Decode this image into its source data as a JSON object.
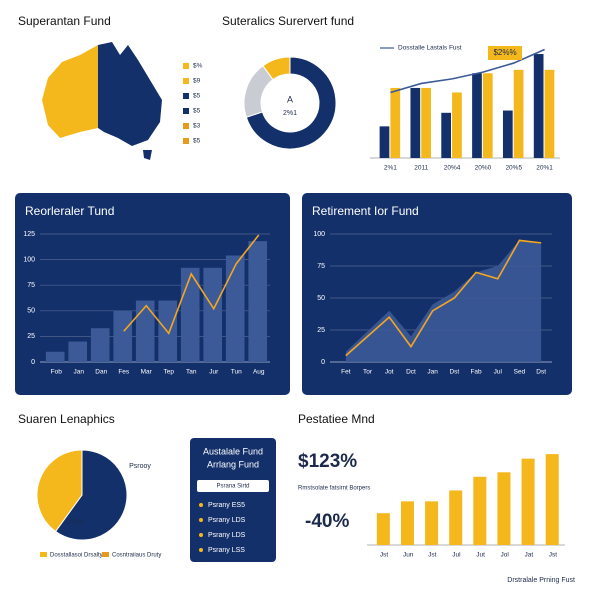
{
  "chart_data": [
    {
      "type": "map",
      "title": "Superantan Fund",
      "legend": [
        {
          "label": "$%",
          "color": "#f5b81c"
        },
        {
          "label": "$9",
          "color": "#f5b81c"
        },
        {
          "label": "$5",
          "color": "#14306b"
        },
        {
          "label": "$5",
          "color": "#14306b"
        },
        {
          "label": "$3",
          "color": "#e89a1c"
        },
        {
          "label": "$5",
          "color": "#e89a1c"
        }
      ]
    },
    {
      "type": "donut",
      "title": "Suteralics Surervert fund",
      "values": [
        70,
        20,
        10
      ],
      "colors": [
        "#14306b",
        "#c9ccd2",
        "#f5b81c"
      ],
      "annotations": [
        "A",
        "2%1"
      ]
    },
    {
      "type": "bar",
      "legend_text": "Dosstalle Lastals Fust",
      "annotations": [
        "$2%%"
      ],
      "categories": [
        "2%1",
        "2011",
        "20%4",
        "20%0",
        "20%5",
        "20%1"
      ],
      "ylim": [
        0,
        100
      ],
      "series": [
        {
          "kind": "bar",
          "color": "#14306b",
          "values": [
            28,
            62,
            40,
            75,
            42,
            92
          ]
        },
        {
          "kind": "bar",
          "color": "#f5b81c",
          "values": [
            62,
            62,
            58,
            75,
            78,
            78
          ]
        },
        {
          "kind": "line",
          "color": "#3c5a98",
          "values": [
            58,
            66,
            70,
            76,
            84,
            96
          ]
        }
      ]
    },
    {
      "type": "bar",
      "title": "Reorleraler Tund",
      "categories": [
        "Fob",
        "Jan",
        "Dan",
        "Fes",
        "Mar",
        "Tep",
        "Tan",
        "Jur",
        "Tun",
        "Aug"
      ],
      "ylim": [
        0,
        125
      ],
      "yticks": [
        0,
        25,
        50,
        75,
        100,
        125
      ],
      "grid": true,
      "series": [
        {
          "kind": "bar",
          "color": "#3c5a98",
          "values": [
            10,
            20,
            33,
            50,
            60,
            60,
            92,
            92,
            104,
            118
          ]
        },
        {
          "kind": "line",
          "color": "#f2a623",
          "values": [
            null,
            null,
            null,
            30,
            55,
            28,
            86,
            52,
            96,
            124
          ]
        }
      ]
    },
    {
      "type": "area",
      "title": "Retirement Ior Fund",
      "categories": [
        "Fet",
        "Tor",
        "Jot",
        "Dct",
        "Jan",
        "Dst",
        "Fab",
        "Jul",
        "Sed",
        "Dst"
      ],
      "ylim": [
        0,
        100
      ],
      "yticks": [
        0,
        25,
        50,
        75,
        100
      ],
      "grid": true,
      "series": [
        {
          "kind": "area",
          "color": "#3c5a98",
          "values": [
            8,
            24,
            40,
            20,
            45,
            55,
            70,
            75,
            95,
            92
          ]
        },
        {
          "kind": "line",
          "color": "#f2a623",
          "values": [
            5,
            20,
            35,
            12,
            40,
            50,
            70,
            65,
            95,
            93
          ]
        }
      ]
    },
    {
      "type": "pie",
      "title": "Suaren Lenaphics",
      "values": [
        60,
        40
      ],
      "colors": [
        "#14306b",
        "#f5b81c"
      ],
      "annotations": [
        "Psrooy",
        "2%%"
      ],
      "legend": [
        {
          "label": "Dosstallasoi Drsalty",
          "color": "#f5b81c"
        },
        {
          "label": "Cosntraiiaus Druty",
          "color": "#e89a1c"
        }
      ]
    },
    {
      "type": "bar",
      "title": "Pestatiee Mnd",
      "annotations": [
        "$123%",
        "Rmstsolate fatsirnt Borpers",
        "-40%"
      ],
      "categories": [
        "Jst",
        "Jun",
        "Jst",
        "Jul",
        "Jut",
        "Jol",
        "Jat",
        "Jst"
      ],
      "ylim": [
        0,
        110
      ],
      "series": [
        {
          "kind": "bar",
          "color": "#f5b81c",
          "values": [
            35,
            48,
            48,
            60,
            75,
            80,
            95,
            100
          ]
        }
      ]
    }
  ],
  "card": {
    "title": [
      "Austalale Fund",
      "Arrlang Fund"
    ],
    "search": "Psrana Sirtd",
    "items": [
      "Psrany ES5",
      "Psrany LDS",
      "Psrany LDS",
      "Psrany LSS"
    ]
  },
  "footer": "Drstralale Prning Fust"
}
